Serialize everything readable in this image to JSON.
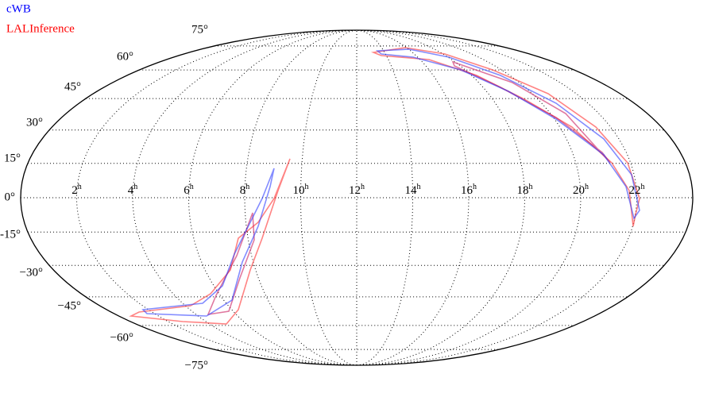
{
  "legend": [
    {
      "label": "cWB",
      "color": "#0000ff"
    },
    {
      "label": "LALInference",
      "color": "#ff0000"
    }
  ],
  "latitude_labels": [
    "75°",
    "60°",
    "45°",
    "30°",
    "15°",
    "0°",
    "-15°",
    "−30°",
    "−45°",
    "−60°",
    "−75°"
  ],
  "ra_labels": [
    {
      "number": "22",
      "unit": "h"
    },
    {
      "number": "20",
      "unit": "h"
    },
    {
      "number": "18",
      "unit": "h"
    },
    {
      "number": "16",
      "unit": "h"
    },
    {
      "number": "14",
      "unit": "h"
    },
    {
      "number": "12",
      "unit": "h"
    },
    {
      "number": "10",
      "unit": "h"
    },
    {
      "number": "8",
      "unit": "h"
    },
    {
      "number": "6",
      "unit": "h"
    },
    {
      "number": "4",
      "unit": "h"
    },
    {
      "number": "2",
      "unit": "h"
    }
  ]
}
